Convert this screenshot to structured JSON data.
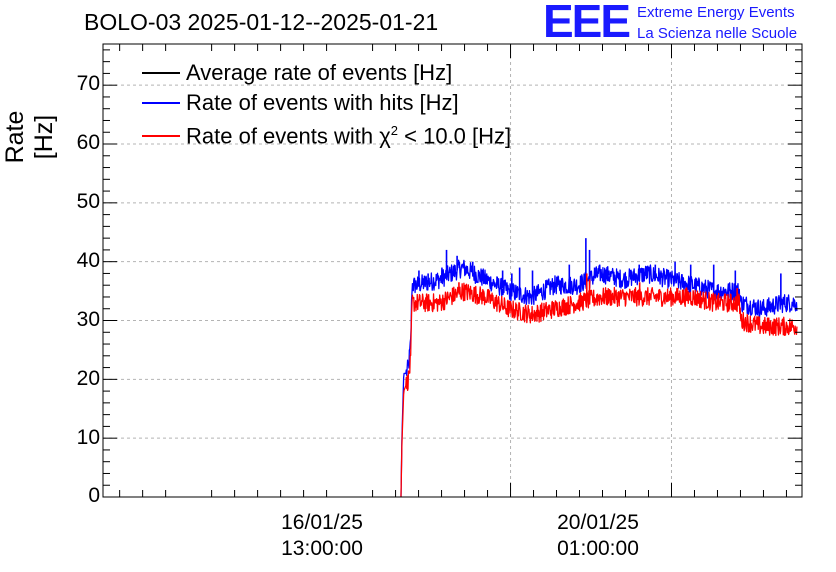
{
  "title": "BOLO-03 2025-01-12--2025-01-21",
  "logo": {
    "mark": "EEE",
    "line1": "Extreme Energy Events",
    "line2": "La Scienza nelle Scuole"
  },
  "colors": {
    "average": "#000000",
    "hits": "#0000ff",
    "chi2": "#ff0000",
    "logo": "#1a1aff",
    "grid": "#b4b4b4"
  },
  "chart_data": {
    "type": "line",
    "title": "BOLO-03 2025-01-12--2025-01-21",
    "xlabel": "",
    "ylabel": "Rate [Hz]",
    "ylim": [
      0,
      77
    ],
    "xlim_days": [
      -5.32,
      9.88
    ],
    "x_unit": "days since 2025-01-13 00:00",
    "yticks": [
      0,
      10,
      20,
      30,
      40,
      50,
      60,
      70
    ],
    "y_tick_labels": [
      "0",
      "10",
      "20",
      "30",
      "40",
      "50",
      "60",
      "70"
    ],
    "xticks": [
      {
        "day": 3.542,
        "date": "16/01/25",
        "time": "13:00:00"
      },
      {
        "day": 7.042,
        "date": "20/01/25",
        "time": "01:00:00"
      }
    ],
    "grid": true,
    "legend_position": "top-left",
    "legend": [
      {
        "key": "average",
        "label": "Average rate of events [Hz]"
      },
      {
        "key": "hits",
        "label": "Rate of events with hits [Hz]"
      },
      {
        "key": "chi2",
        "label": "Rate of events with",
        "symbol": "χ",
        "sup": "2",
        "suffix": " < 10.0 [Hz]"
      }
    ],
    "series": [
      {
        "name": "Rate of events with hits [Hz]",
        "key": "hits",
        "x_days": [
          1.16,
          1.18,
          1.22,
          1.27,
          1.32,
          1.37,
          1.4,
          1.5,
          2.0,
          2.5,
          3.0,
          3.5,
          4.0,
          4.5,
          5.0,
          5.5,
          6.0,
          6.5,
          7.0,
          7.5,
          8.0,
          8.52,
          8.55,
          9.0,
          9.5,
          9.77
        ],
        "values": [
          0,
          10,
          21,
          21,
          22,
          26,
          36,
          36,
          37,
          39,
          37,
          35,
          34,
          36,
          36,
          38,
          37,
          38,
          37,
          36,
          35,
          35,
          33,
          32,
          33,
          33
        ]
      },
      {
        "name": "Rate of events with χ2 < 10.0 [Hz]",
        "key": "chi2",
        "x_days": [
          1.16,
          1.18,
          1.22,
          1.27,
          1.32,
          1.37,
          1.4,
          1.5,
          2.0,
          2.5,
          3.0,
          3.5,
          4.0,
          4.5,
          5.0,
          5.5,
          6.0,
          6.5,
          7.0,
          7.5,
          8.0,
          8.52,
          8.55,
          9.0,
          9.5,
          9.77
        ],
        "values": [
          0,
          9,
          18,
          19,
          20,
          23,
          33,
          33,
          33,
          35,
          34,
          32,
          31,
          32,
          33,
          34,
          34,
          34,
          34,
          34,
          33,
          33,
          30,
          29,
          29,
          29
        ]
      },
      {
        "name": "Average rate of events [Hz]",
        "key": "average",
        "x_days": [],
        "values": []
      }
    ],
    "spikes": [
      {
        "key": "hits",
        "day": 1.55,
        "value": 38.5
      },
      {
        "key": "hits",
        "day": 1.75,
        "value": 38
      },
      {
        "key": "hits",
        "day": 2.05,
        "value": 39
      },
      {
        "key": "hits",
        "day": 2.15,
        "value": 42
      },
      {
        "key": "hits",
        "day": 2.38,
        "value": 41
      },
      {
        "key": "hits",
        "day": 2.72,
        "value": 40
      },
      {
        "key": "hits",
        "day": 3.37,
        "value": 38.5
      },
      {
        "key": "hits",
        "day": 3.57,
        "value": 38
      },
      {
        "key": "hits",
        "day": 3.74,
        "value": 39
      },
      {
        "key": "hits",
        "day": 4.02,
        "value": 38.5
      },
      {
        "key": "hits",
        "day": 4.58,
        "value": 37.5
      },
      {
        "key": "hits",
        "day": 4.82,
        "value": 39.5
      },
      {
        "key": "hits",
        "day": 5.18,
        "value": 44
      },
      {
        "key": "hits",
        "day": 5.26,
        "value": 42
      },
      {
        "key": "hits",
        "day": 5.37,
        "value": 39
      },
      {
        "key": "hits",
        "day": 5.68,
        "value": 38.5
      },
      {
        "key": "hits",
        "day": 6.34,
        "value": 39.5
      },
      {
        "key": "hits",
        "day": 6.69,
        "value": 39.5
      },
      {
        "key": "hits",
        "day": 7.12,
        "value": 40
      },
      {
        "key": "hits",
        "day": 7.46,
        "value": 39.5
      },
      {
        "key": "hits",
        "day": 7.96,
        "value": 39.5
      },
      {
        "key": "hits",
        "day": 8.43,
        "value": 38.5
      },
      {
        "key": "hits",
        "day": 9.42,
        "value": 38
      },
      {
        "key": "chi2",
        "day": 5.2,
        "value": 38
      },
      {
        "key": "chi2",
        "day": 5.26,
        "value": 37
      },
      {
        "key": "chi2",
        "day": 2.42,
        "value": 36.5
      },
      {
        "key": "chi2",
        "day": 6.35,
        "value": 36.5
      },
      {
        "key": "chi2",
        "day": 8.47,
        "value": 35.5
      }
    ],
    "noise_amplitude": 1.6
  }
}
